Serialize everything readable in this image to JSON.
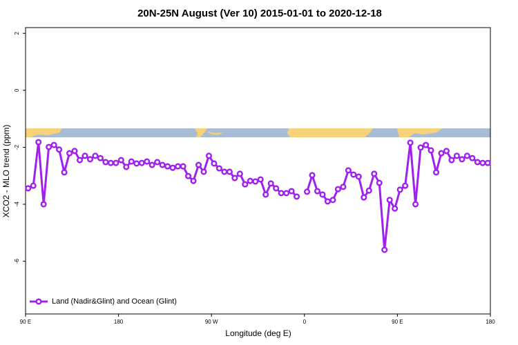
{
  "chart_data": {
    "type": "line",
    "title": "20N-25N August (Ver 10)   2015-01-01 to 2020-12-18",
    "x_label": "Longitude (deg E)",
    "y_label": "XCO2 - MLO trend (ppm)",
    "xlim": [
      90,
      540
    ],
    "ylim": [
      -7.85,
      2.2
    ],
    "xticks": [
      {
        "value": 90,
        "label": "90 E"
      },
      180,
      {
        "value": 270,
        "label": "90 W"
      },
      {
        "value": 360,
        "label": "0"
      },
      {
        "value": 450,
        "label": "90 E"
      },
      {
        "value": 540,
        "label": "180"
      }
    ],
    "yticks": [
      -6,
      -4,
      -2,
      0,
      2
    ],
    "legend": "bottomleft",
    "x": [
      92.5,
      97.5,
      102.5,
      107.5,
      112.5,
      117.5,
      122.5,
      127.5,
      132.5,
      137.5,
      142.5,
      147.5,
      152.5,
      157.5,
      162.5,
      167.5,
      172.5,
      177.5,
      182.5,
      187.5,
      192.5,
      197.5,
      202.5,
      207.5,
      212.5,
      217.5,
      222.5,
      227.5,
      232.5,
      237.5,
      242.5,
      247.5,
      252.5,
      257.5,
      262.5,
      267.5,
      272.5,
      277.5,
      282.5,
      287.5,
      292.5,
      297.5,
      302.5,
      307.5,
      312.5,
      317.5,
      322.5,
      327.5,
      332.5,
      337.5,
      342.5,
      347.5,
      352.5,
      357.5,
      362.5,
      367.5,
      372.5,
      377.5,
      382.5,
      387.5,
      392.5,
      397.5,
      402.5,
      407.5,
      412.5,
      417.5,
      422.5,
      427.5,
      432.5,
      437.5,
      442.5,
      447.5,
      452.5,
      457.5,
      462.5,
      467.5,
      472.5,
      477.5,
      482.5,
      487.5,
      492.5,
      497.5,
      502.5,
      507.5,
      512.5,
      517.5,
      522.5,
      527.5,
      532.5,
      537.5
    ],
    "series": [
      {
        "name": "Land (Nadir&Glint) and Ocean (Glint)",
        "color": "#a020f0",
        "values": [
          -3.44,
          -3.35,
          -1.82,
          -4.0,
          -1.99,
          -1.92,
          -2.08,
          -2.88,
          -2.21,
          -2.13,
          -2.45,
          -2.3,
          -2.42,
          -2.3,
          -2.38,
          -2.52,
          -2.55,
          -2.55,
          -2.45,
          -2.69,
          -2.5,
          -2.57,
          -2.55,
          -2.5,
          -2.62,
          -2.52,
          -2.62,
          -2.67,
          -2.72,
          -2.67,
          -2.67,
          -3.01,
          -3.18,
          -2.62,
          -2.86,
          -2.3,
          -2.57,
          -2.74,
          -2.86,
          -2.86,
          -3.08,
          -2.93,
          -3.3,
          -3.18,
          -3.2,
          -3.13,
          -3.66,
          -3.27,
          -3.44,
          -3.61,
          -3.61,
          -3.54,
          -3.73,
          null,
          -3.56,
          -2.98,
          -3.54,
          -3.66,
          -3.9,
          -3.85,
          -3.47,
          -3.39,
          -2.81,
          -2.96,
          -3.03,
          -3.76,
          -3.52,
          -2.93,
          -3.25,
          -5.6,
          -3.85,
          -4.15,
          -3.49,
          -3.35,
          -1.84,
          -4.0,
          -2.01,
          -1.92,
          -2.11,
          -2.88,
          -2.21,
          -2.13,
          -2.45,
          -2.3,
          -2.42,
          -2.3,
          -2.38,
          -2.52,
          -2.55,
          -2.55
        ]
      }
    ]
  }
}
